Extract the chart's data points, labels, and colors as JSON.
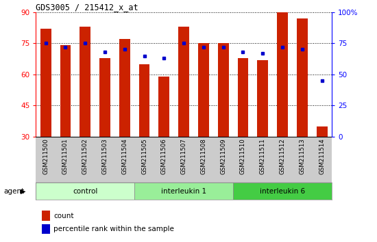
{
  "title": "GDS3005 / 215412_x_at",
  "samples": [
    "GSM211500",
    "GSM211501",
    "GSM211502",
    "GSM211503",
    "GSM211504",
    "GSM211505",
    "GSM211506",
    "GSM211507",
    "GSM211508",
    "GSM211509",
    "GSM211510",
    "GSM211511",
    "GSM211512",
    "GSM211513",
    "GSM211514"
  ],
  "bar_heights": [
    82,
    74,
    83,
    68,
    77,
    65,
    59,
    83,
    75,
    75,
    68,
    67,
    90,
    87,
    35
  ],
  "blue_dots_pct": [
    75,
    72,
    75,
    68,
    70,
    65,
    63,
    75,
    72,
    72,
    68,
    67,
    72,
    70,
    45
  ],
  "bar_color": "#cc2200",
  "dot_color": "#0000cc",
  "ylim_left": [
    30,
    90
  ],
  "ylim_right": [
    0,
    100
  ],
  "yticks_left": [
    30,
    45,
    60,
    75,
    90
  ],
  "yticks_right": [
    0,
    25,
    50,
    75,
    100
  ],
  "ytick_labels_right": [
    "0",
    "25",
    "50",
    "75",
    "100%"
  ],
  "group_colors": [
    "#ccffcc",
    "#99ee99",
    "#44cc44"
  ],
  "group_labels": [
    "control",
    "interleukin 1",
    "interleukin 6"
  ],
  "group_ranges": [
    [
      0,
      5
    ],
    [
      5,
      10
    ],
    [
      10,
      15
    ]
  ],
  "bar_width": 0.55
}
